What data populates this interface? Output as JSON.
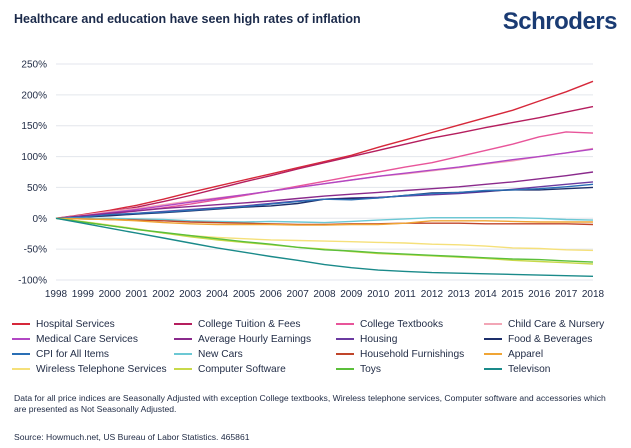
{
  "title": "Healthcare and education have seen high rates of inflation",
  "brand": "Schroders",
  "note": "Data for all price indices are Seasonally Adjusted with exception College textbooks, Wireless telephone services, Computer software and accessories which are presented as Not Seasonally Adjusted.",
  "source": "Source: Howmuch.net, US Bureau of Labor Statistics. 465861",
  "chart_data": {
    "type": "line",
    "title": "Healthcare and education have seen high rates of inflation",
    "xlabel": "",
    "ylabel": "",
    "xlim": [
      1998,
      2018
    ],
    "ylim": [
      -100,
      250
    ],
    "grid": true,
    "legend_placement": "bottom",
    "x_ticks": [
      "1998",
      "1999",
      "2000",
      "2001",
      "2002",
      "2003",
      "2004",
      "2005",
      "2006",
      "2007",
      "2008",
      "2009",
      "2010",
      "2011",
      "2012",
      "2013",
      "2014",
      "2015",
      "2016",
      "2017",
      "2018"
    ],
    "y_ticks": [
      {
        "value": 250,
        "label": "250%"
      },
      {
        "value": 200,
        "label": "200%"
      },
      {
        "value": 150,
        "label": "150%"
      },
      {
        "value": 100,
        "label": "100%"
      },
      {
        "value": 50,
        "label": "50%"
      },
      {
        "value": 0,
        "label": "0%"
      },
      {
        "value": -50,
        "label": "-50%"
      },
      {
        "value": -100,
        "label": "-100%"
      }
    ],
    "x": [
      1998,
      1999,
      2000,
      2001,
      2002,
      2003,
      2004,
      2005,
      2006,
      2007,
      2008,
      2009,
      2010,
      2011,
      2012,
      2013,
      2014,
      2015,
      2016,
      2017,
      2018
    ],
    "series": [
      {
        "name": "Hospital Services",
        "color": "#d6283a",
        "values": [
          0,
          6,
          13,
          21,
          31,
          42,
          52,
          62,
          72,
          82,
          92,
          102,
          115,
          127,
          139,
          151,
          163,
          175,
          190,
          205,
          222
        ]
      },
      {
        "name": "College Tuition & Fees",
        "color": "#b51e5e",
        "values": [
          0,
          5,
          11,
          18,
          27,
          37,
          48,
          59,
          69,
          80,
          90,
          100,
          110,
          120,
          130,
          138,
          147,
          155,
          163,
          172,
          181
        ]
      },
      {
        "name": "College Textbooks",
        "color": "#e8559a",
        "values": [
          0,
          3,
          7,
          12,
          17,
          23,
          30,
          37,
          44,
          52,
          60,
          68,
          75,
          83,
          90,
          100,
          110,
          120,
          132,
          140,
          138
        ]
      },
      {
        "name": "Child Care & Nursery",
        "color": "#f2a6b6",
        "values": [
          0,
          5,
          11,
          16,
          22,
          28,
          33,
          38,
          44,
          50,
          56,
          62,
          68,
          72,
          77,
          82,
          88,
          93,
          100,
          106,
          113
        ]
      },
      {
        "name": "Medical Care Services",
        "color": "#b247c4",
        "values": [
          0,
          4,
          9,
          14,
          20,
          26,
          32,
          38,
          44,
          50,
          56,
          62,
          68,
          73,
          78,
          83,
          89,
          95,
          100,
          106,
          112
        ]
      },
      {
        "name": "Average Hourly Earnings",
        "color": "#8a2a8c",
        "values": [
          0,
          4,
          8,
          12,
          16,
          19,
          22,
          25,
          28,
          32,
          36,
          39,
          42,
          45,
          48,
          51,
          55,
          59,
          64,
          69,
          75
        ]
      },
      {
        "name": "Housing",
        "color": "#6a3aa0",
        "values": [
          0,
          2,
          5,
          8,
          11,
          14,
          17,
          20,
          24,
          28,
          31,
          33,
          34,
          36,
          38,
          40,
          43,
          47,
          51,
          55,
          59
        ]
      },
      {
        "name": "Food & Beverages",
        "color": "#1d2f6b",
        "values": [
          0,
          2,
          4,
          7,
          9,
          12,
          15,
          18,
          20,
          24,
          31,
          32,
          33,
          37,
          41,
          42,
          44,
          46,
          46,
          48,
          50
        ]
      },
      {
        "name": "CPI for All Items",
        "color": "#2a6fb5",
        "values": [
          0,
          2,
          6,
          8,
          10,
          13,
          16,
          19,
          23,
          27,
          31,
          30,
          33,
          37,
          40,
          42,
          45,
          46,
          48,
          51,
          55
        ]
      },
      {
        "name": "New Cars",
        "color": "#6cc8d4",
        "values": [
          0,
          0,
          0,
          -1,
          -2,
          -4,
          -5,
          -6,
          -5,
          -6,
          -7,
          -5,
          -3,
          -1,
          1,
          1,
          1,
          1,
          0,
          -2,
          -3
        ]
      },
      {
        "name": "Household Furnishings",
        "color": "#c0452a",
        "values": [
          0,
          -1,
          -2,
          -3,
          -4,
          -6,
          -7,
          -8,
          -9,
          -10,
          -10,
          -9,
          -9,
          -8,
          -8,
          -8,
          -9,
          -9,
          -9,
          -9,
          -10
        ]
      },
      {
        "name": "Apparel",
        "color": "#f0a535",
        "values": [
          0,
          -1,
          -2,
          -4,
          -7,
          -9,
          -10,
          -10,
          -10,
          -11,
          -11,
          -10,
          -10,
          -8,
          -4,
          -4,
          -4,
          -5,
          -6,
          -6,
          -6
        ]
      },
      {
        "name": "Wireless Telephone Services",
        "color": "#f5e07a",
        "values": [
          0,
          -5,
          -11,
          -17,
          -24,
          -28,
          -31,
          -33,
          -35,
          -36,
          -37,
          -38,
          -39,
          -40,
          -42,
          -43,
          -45,
          -48,
          -49,
          -51,
          -52
        ]
      },
      {
        "name": "Computer Software",
        "color": "#c8d94a",
        "values": [
          0,
          -6,
          -12,
          -18,
          -24,
          -30,
          -35,
          -39,
          -43,
          -47,
          -50,
          -54,
          -57,
          -59,
          -61,
          -63,
          -65,
          -68,
          -70,
          -72,
          -74
        ]
      },
      {
        "name": "Toys",
        "color": "#5bbf3a",
        "values": [
          0,
          -6,
          -12,
          -18,
          -23,
          -28,
          -33,
          -38,
          -42,
          -47,
          -51,
          -53,
          -56,
          -58,
          -60,
          -62,
          -64,
          -66,
          -67,
          -69,
          -71
        ]
      },
      {
        "name": "Televison",
        "color": "#1a8a8a",
        "values": [
          0,
          -8,
          -16,
          -24,
          -32,
          -40,
          -48,
          -55,
          -62,
          -68,
          -75,
          -80,
          -84,
          -86,
          -88,
          -89,
          -90,
          -91,
          -92,
          -93,
          -94
        ]
      }
    ]
  }
}
